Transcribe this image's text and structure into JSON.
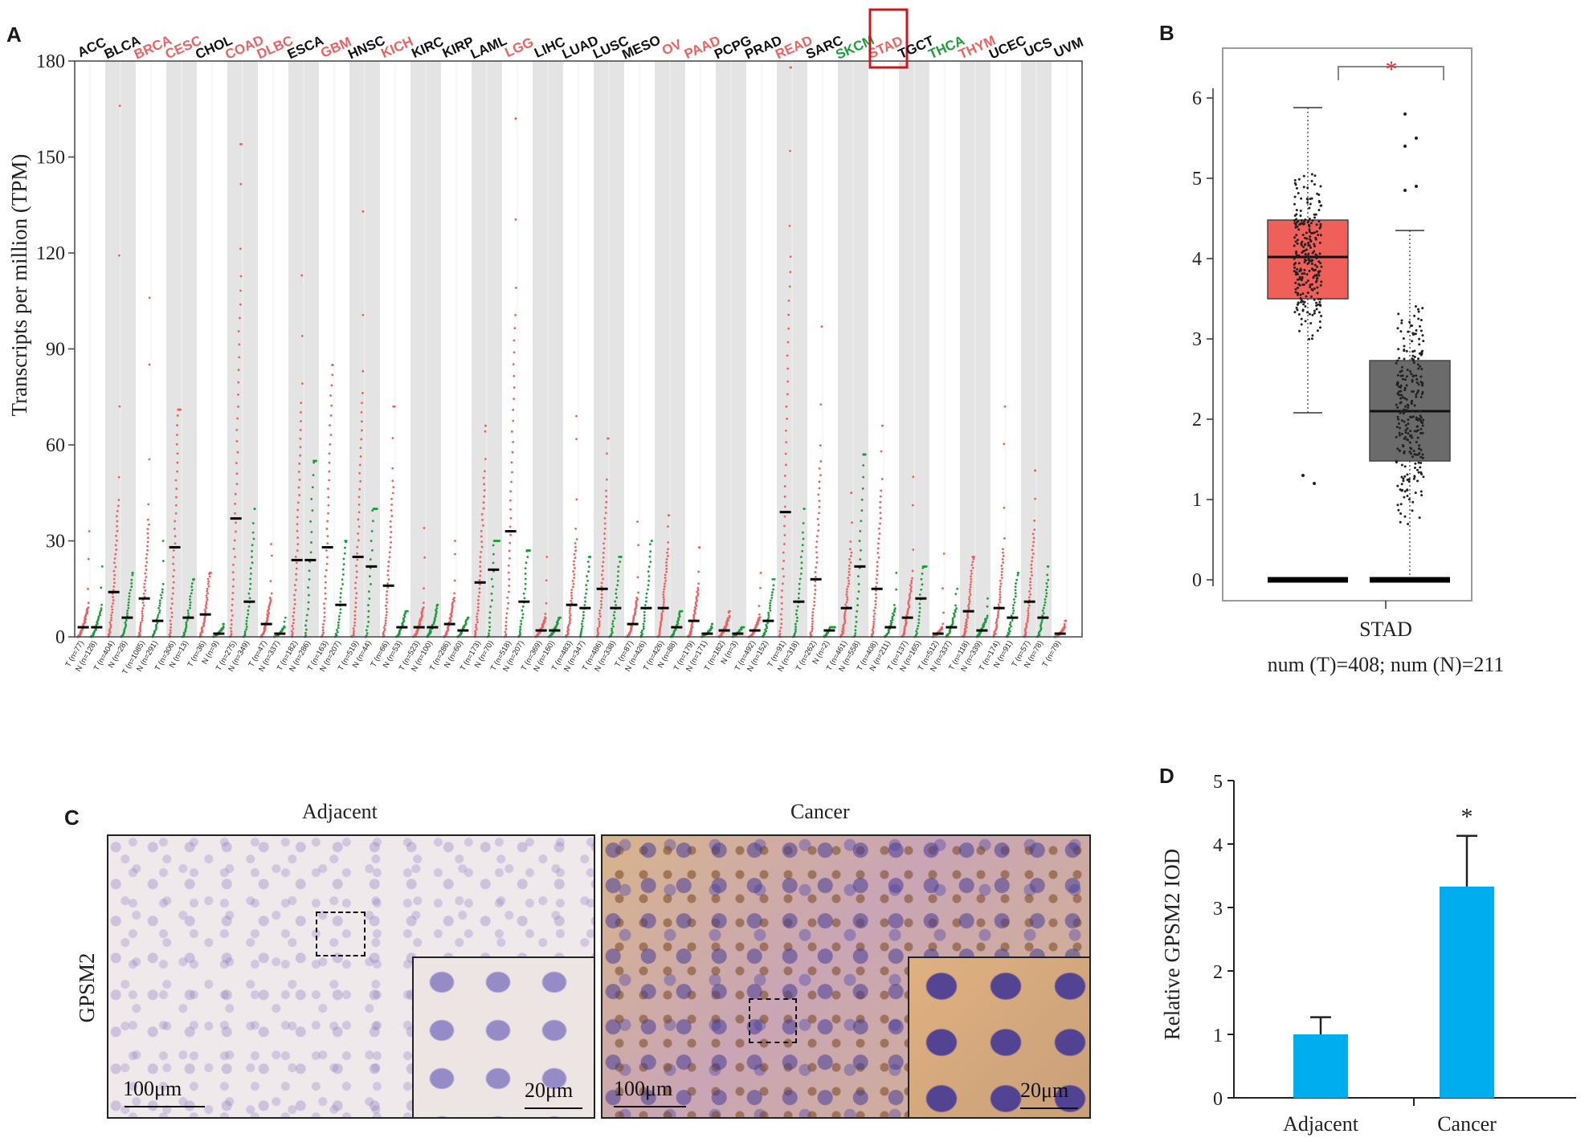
{
  "panels": {
    "a": {
      "letter": "A"
    },
    "b": {
      "letter": "B"
    },
    "c": {
      "letter": "C"
    },
    "d": {
      "letter": "D"
    }
  },
  "chart_data": [
    {
      "id": "A",
      "type": "scatter",
      "ylabel": "Transcripts per million (TPM)",
      "ylim": [
        0,
        180
      ],
      "yticks": [
        0,
        30,
        60,
        90,
        120,
        150,
        180
      ],
      "highlight": "STAD",
      "colors": {
        "tumor": "#f06060",
        "normal": "#1a9e3a",
        "black": "#111111"
      },
      "cancers": [
        {
          "name": "ACC",
          "color": "black",
          "t_n": "77",
          "n_n": "128",
          "t_med": 3,
          "n_med": 3,
          "t_max": 33,
          "n_max": 22
        },
        {
          "name": "BLCA",
          "color": "black",
          "t_n": "404",
          "n_n": "28",
          "t_med": 14,
          "n_med": 6,
          "t_max": 166,
          "n_max": 20
        },
        {
          "name": "BRCA",
          "color": "red",
          "t_n": "1085",
          "n_n": "291",
          "t_med": 12,
          "n_med": 5,
          "t_max": 106,
          "n_max": 30
        },
        {
          "name": "CESC",
          "color": "red",
          "t_n": "306",
          "n_n": "13",
          "t_med": 28,
          "n_med": 6,
          "t_max": 71,
          "n_max": 18
        },
        {
          "name": "CHOL",
          "color": "black",
          "t_n": "36",
          "n_n": "9",
          "t_med": 7,
          "n_med": 1,
          "t_max": 20,
          "n_max": 4
        },
        {
          "name": "COAD",
          "color": "red",
          "t_n": "275",
          "n_n": "349",
          "t_med": 37,
          "n_med": 11,
          "t_max": 154,
          "n_max": 40
        },
        {
          "name": "DLBC",
          "color": "red",
          "t_n": "47",
          "n_n": "337",
          "t_med": 4,
          "n_med": 1,
          "t_max": 29,
          "n_max": 6
        },
        {
          "name": "ESCA",
          "color": "black",
          "t_n": "182",
          "n_n": "286",
          "t_med": 24,
          "n_med": 24,
          "t_max": 113,
          "n_max": 55
        },
        {
          "name": "GBM",
          "color": "red",
          "t_n": "163",
          "n_n": "207",
          "t_med": 28,
          "n_med": 10,
          "t_max": 85,
          "n_max": 30
        },
        {
          "name": "HNSC",
          "color": "black",
          "t_n": "519",
          "n_n": "44",
          "t_med": 25,
          "n_med": 22,
          "t_max": 133,
          "n_max": 40
        },
        {
          "name": "KICH",
          "color": "red",
          "t_n": "66",
          "n_n": "53",
          "t_med": 16,
          "n_med": 3,
          "t_max": 72,
          "n_max": 8
        },
        {
          "name": "KIRC",
          "color": "black",
          "t_n": "523",
          "n_n": "100",
          "t_med": 3,
          "n_med": 3,
          "t_max": 34,
          "n_max": 10
        },
        {
          "name": "KIRP",
          "color": "black",
          "t_n": "286",
          "n_n": "60",
          "t_med": 4,
          "n_med": 2,
          "t_max": 30,
          "n_max": 6
        },
        {
          "name": "LAML",
          "color": "black",
          "t_n": "173",
          "n_n": "70",
          "t_med": 17,
          "n_med": 21,
          "t_max": 66,
          "n_max": 30
        },
        {
          "name": "LGG",
          "color": "red",
          "t_n": "518",
          "n_n": "207",
          "t_med": 33,
          "n_med": 11,
          "t_max": 162,
          "n_max": 27
        },
        {
          "name": "LIHC",
          "color": "black",
          "t_n": "369",
          "n_n": "160",
          "t_med": 2,
          "n_med": 2,
          "t_max": 25,
          "n_max": 6
        },
        {
          "name": "LUAD",
          "color": "black",
          "t_n": "483",
          "n_n": "347",
          "t_med": 10,
          "n_med": 9,
          "t_max": 69,
          "n_max": 25
        },
        {
          "name": "LUSC",
          "color": "black",
          "t_n": "486",
          "n_n": "338",
          "t_med": 15,
          "n_med": 9,
          "t_max": 62,
          "n_max": 25
        },
        {
          "name": "MESO",
          "color": "black",
          "t_n": "87",
          "n_n": "426",
          "t_med": 4,
          "n_med": 9,
          "t_max": 36,
          "n_max": 30
        },
        {
          "name": "OV",
          "color": "red",
          "t_n": "426",
          "n_n": "88",
          "t_med": 9,
          "n_med": 3,
          "t_max": 38,
          "n_max": 8
        },
        {
          "name": "PAAD",
          "color": "red",
          "t_n": "179",
          "n_n": "171",
          "t_med": 5,
          "n_med": 1,
          "t_max": 28,
          "n_max": 4
        },
        {
          "name": "PCPG",
          "color": "black",
          "t_n": "182",
          "n_n": "3",
          "t_med": 2,
          "n_med": 1,
          "t_max": 8,
          "n_max": 3
        },
        {
          "name": "PRAD",
          "color": "black",
          "t_n": "492",
          "n_n": "152",
          "t_med": 2,
          "n_med": 5,
          "t_max": 20,
          "n_max": 18
        },
        {
          "name": "READ",
          "color": "red",
          "t_n": "91",
          "n_n": "318",
          "t_med": 39,
          "n_med": 11,
          "t_max": 178,
          "n_max": 40
        },
        {
          "name": "SARC",
          "color": "black",
          "t_n": "262",
          "n_n": "2",
          "t_med": 18,
          "n_med": 2,
          "t_max": 97,
          "n_max": 3
        },
        {
          "name": "SKCM",
          "color": "green",
          "t_n": "461",
          "n_n": "558",
          "t_med": 9,
          "n_med": 22,
          "t_max": 45,
          "n_max": 57
        },
        {
          "name": "STAD",
          "color": "red",
          "t_n": "408",
          "n_n": "211",
          "t_med": 15,
          "n_med": 3,
          "t_max": 66,
          "n_max": 20
        },
        {
          "name": "TGCT",
          "color": "black",
          "t_n": "137",
          "n_n": "165",
          "t_med": 6,
          "n_med": 12,
          "t_max": 50,
          "n_max": 22
        },
        {
          "name": "THCA",
          "color": "green",
          "t_n": "512",
          "n_n": "337",
          "t_med": 1,
          "n_med": 3,
          "t_max": 26,
          "n_max": 15
        },
        {
          "name": "THYM",
          "color": "red",
          "t_n": "118",
          "n_n": "339",
          "t_med": 8,
          "n_med": 2,
          "t_max": 25,
          "n_max": 12
        },
        {
          "name": "UCEC",
          "color": "black",
          "t_n": "174",
          "n_n": "91",
          "t_med": 9,
          "n_med": 6,
          "t_max": 72,
          "n_max": 20
        },
        {
          "name": "UCS",
          "color": "black",
          "t_n": "57",
          "n_n": "78",
          "t_med": 11,
          "n_med": 6,
          "t_max": 52,
          "n_max": 22
        },
        {
          "name": "UVM",
          "color": "black",
          "t_n": "79",
          "n_n": "",
          "t_med": 1,
          "n_med": 0,
          "t_max": 5,
          "n_max": 0
        }
      ],
      "t_prefix": "T",
      "n_prefix": "N"
    },
    {
      "id": "B",
      "type": "box",
      "ylim": [
        0,
        6.5
      ],
      "yticks": [
        0,
        1,
        2,
        3,
        4,
        5,
        6
      ],
      "xlabel": "STAD",
      "caption": "num (T)=408; num (N)=211",
      "significance": "*",
      "boxes": [
        {
          "group": "T",
          "color": "#f0605a",
          "q1": 3.5,
          "median": 4.02,
          "q3": 4.48,
          "whisker_low": 2.08,
          "whisker_high": 5.88,
          "outliers": [
            1.3,
            1.2
          ]
        },
        {
          "group": "N",
          "color": "#6b6b6b",
          "q1": 1.48,
          "median": 2.1,
          "q3": 2.73,
          "whisker_low": 0,
          "whisker_high": 4.35,
          "outliers": [
            5.8,
            5.5,
            5.4,
            4.9,
            4.85
          ]
        }
      ]
    },
    {
      "id": "D",
      "type": "bar",
      "categories": [
        "Adjacent",
        "Cancer"
      ],
      "values": [
        1.0,
        3.33
      ],
      "errors": [
        0.27,
        0.8
      ],
      "ylabel": "Relative GPSM2 IOD",
      "ylim": [
        0,
        5
      ],
      "yticks": [
        0,
        1,
        2,
        3,
        4,
        5
      ],
      "significance": "*",
      "bar_color": "#00adef"
    }
  ],
  "ihc": {
    "row_label": "GPSM2",
    "adjacent_title": "Adjacent",
    "cancer_title": "Cancer",
    "scale_large": "100μm",
    "scale_small": "20μm"
  }
}
